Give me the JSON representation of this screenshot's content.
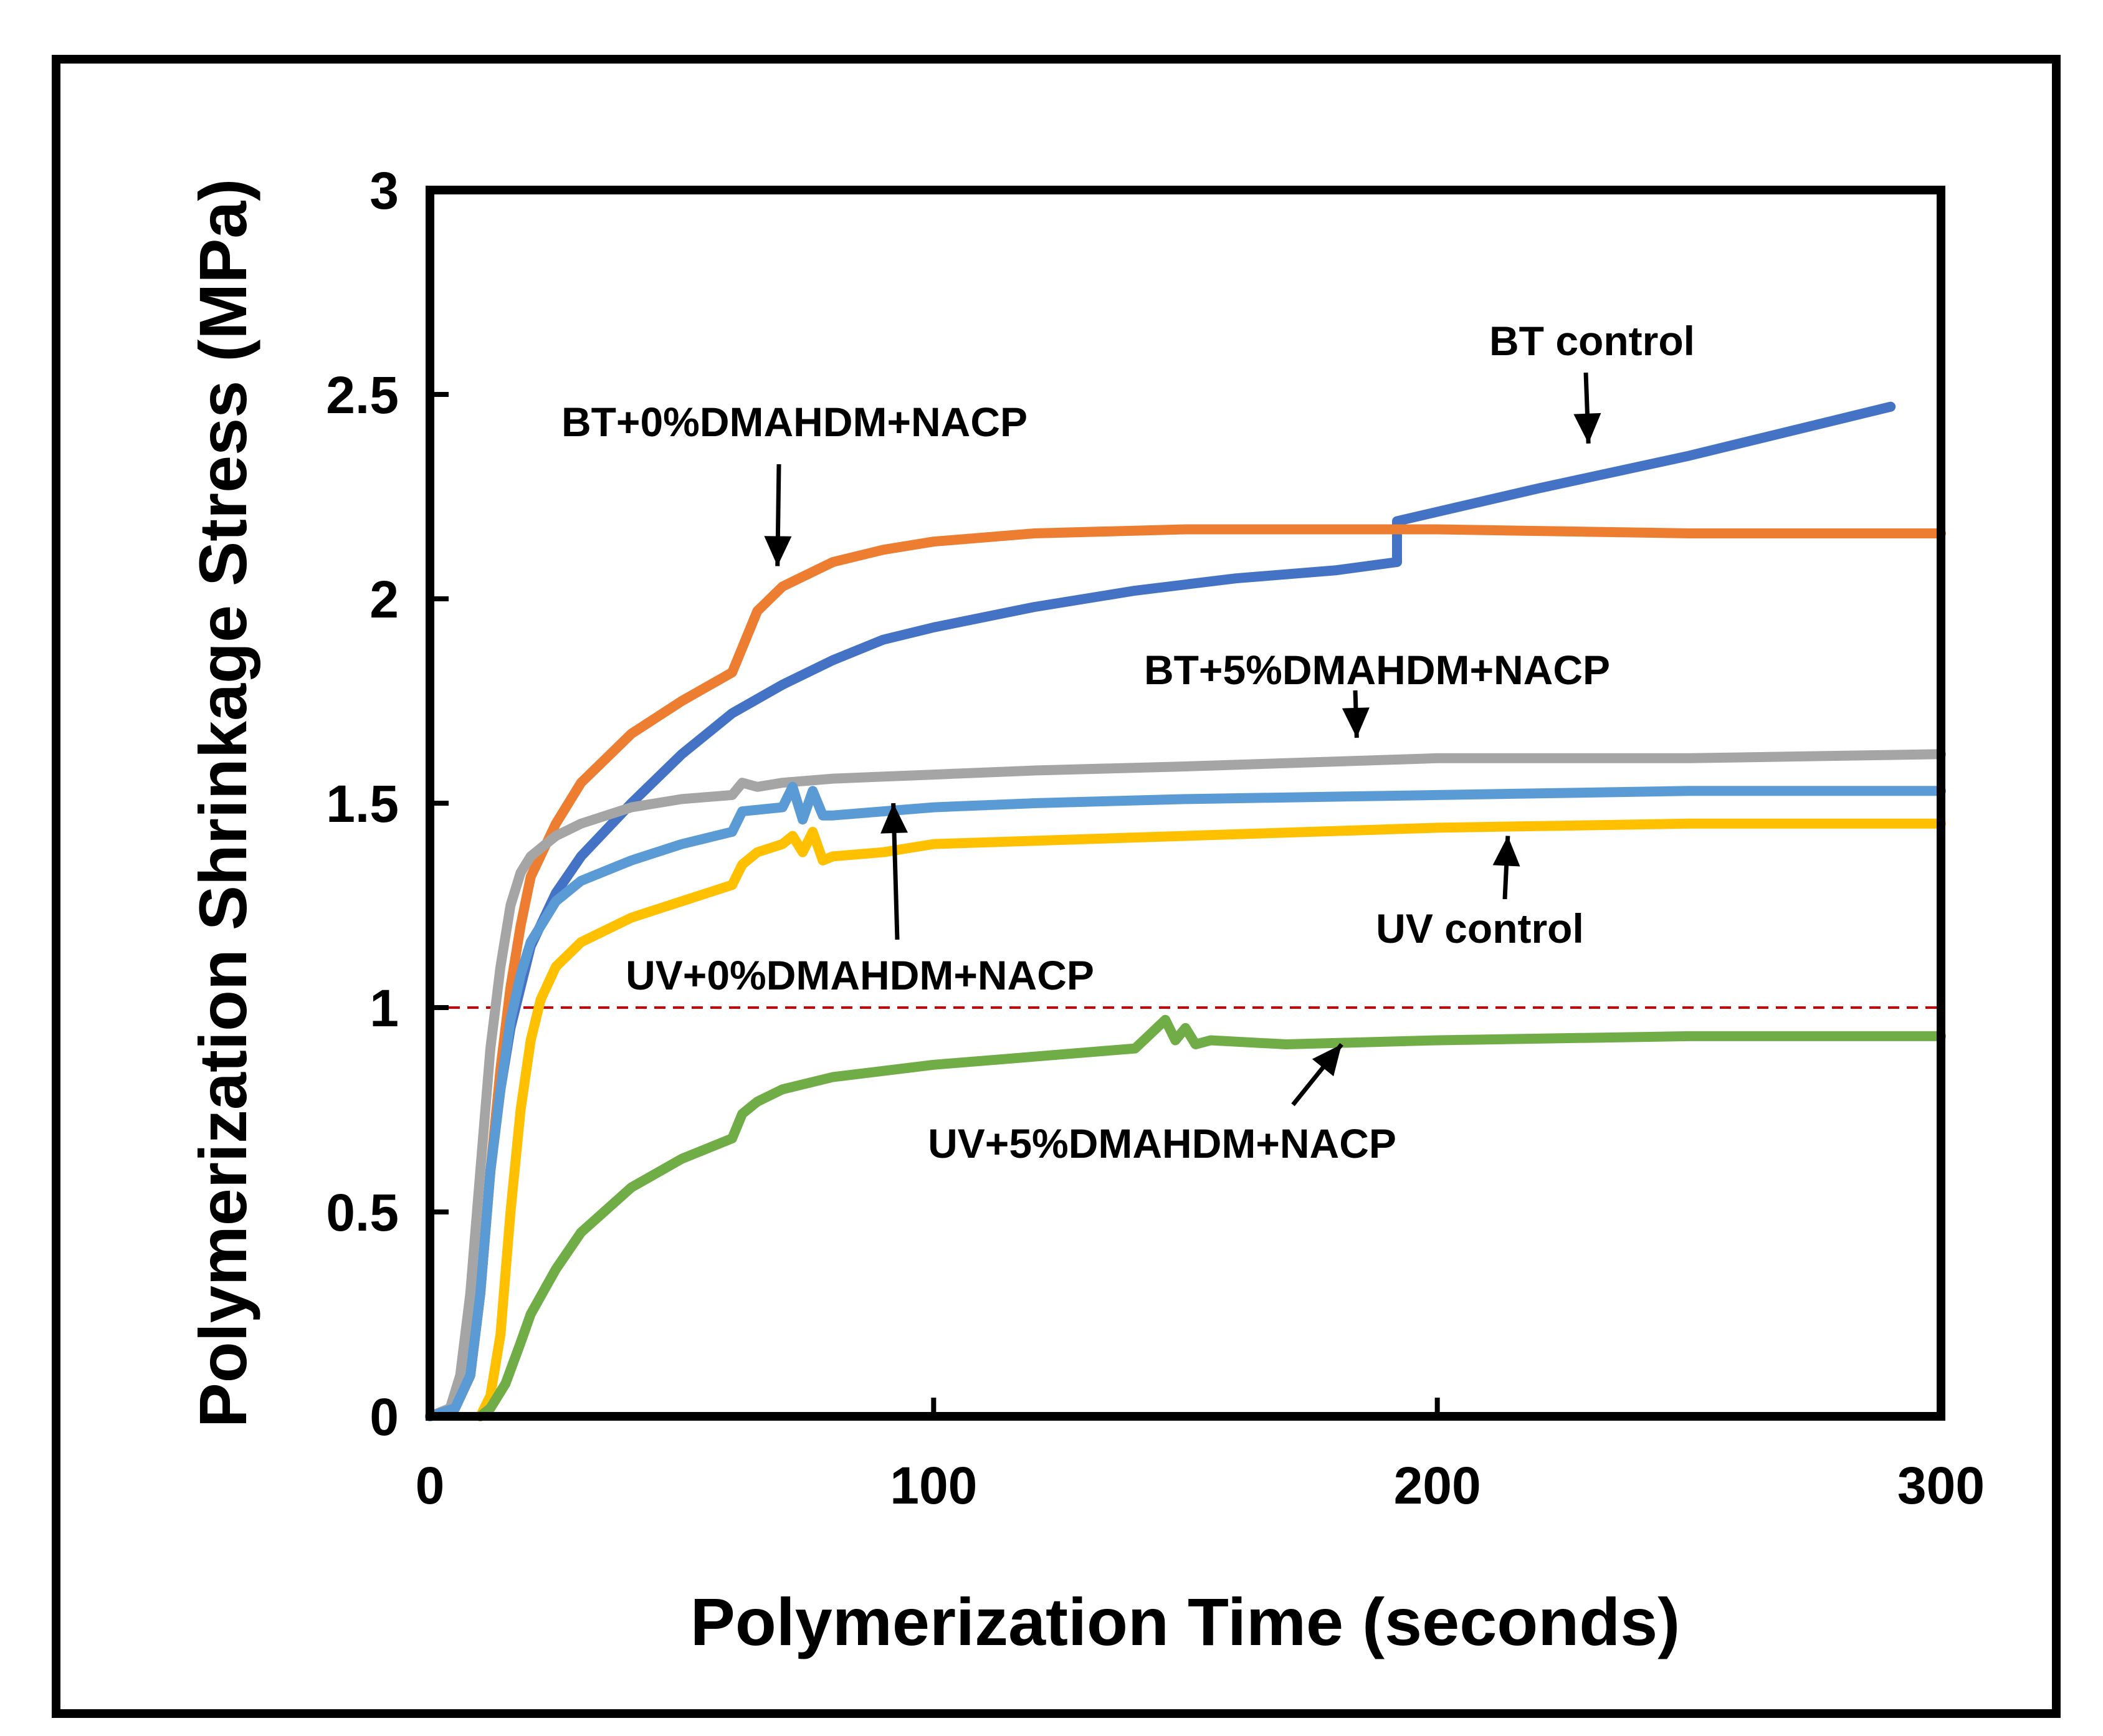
{
  "chart_data": {
    "type": "line",
    "xlabel": "Polymerization Time (seconds)",
    "ylabel": "Polymerization Shrinkage Stress (MPa)",
    "xlim": [
      0,
      300
    ],
    "ylim": [
      0,
      3
    ],
    "xticks": [
      "0",
      "100",
      "200",
      "300"
    ],
    "yticks": [
      "0",
      "0.5",
      "1",
      "1.5",
      "2",
      "2.5",
      "3"
    ],
    "grid": false,
    "legend": "none (curves labeled by annotations with arrows)",
    "reference_line": {
      "y": 1.0,
      "style": "dashed",
      "color": "#cc0000"
    },
    "series": [
      {
        "name": "BT control",
        "color": "#4472c4",
        "x": [
          0,
          5,
          8,
          10,
          12,
          14,
          16,
          18,
          20,
          25,
          30,
          40,
          50,
          60,
          70,
          80,
          90,
          100,
          120,
          140,
          160,
          180,
          192,
          192,
          220,
          250,
          290
        ],
        "y": [
          0,
          0.02,
          0.1,
          0.3,
          0.6,
          0.8,
          0.95,
          1.05,
          1.15,
          1.28,
          1.37,
          1.5,
          1.62,
          1.72,
          1.79,
          1.85,
          1.9,
          1.93,
          1.98,
          2.02,
          2.05,
          2.07,
          2.09,
          2.19,
          2.27,
          2.35,
          2.47
        ]
      },
      {
        "name": "BT+0%DMAHDM+NACP",
        "color": "#ed7d31",
        "x": [
          0,
          5,
          8,
          10,
          12,
          14,
          16,
          18,
          20,
          25,
          30,
          40,
          50,
          60,
          62,
          65,
          70,
          80,
          90,
          100,
          120,
          150,
          200,
          250,
          300
        ],
        "y": [
          0,
          0.02,
          0.1,
          0.3,
          0.6,
          0.85,
          1.05,
          1.2,
          1.32,
          1.45,
          1.55,
          1.67,
          1.75,
          1.82,
          1.88,
          1.97,
          2.03,
          2.09,
          2.12,
          2.14,
          2.16,
          2.17,
          2.17,
          2.16,
          2.16
        ]
      },
      {
        "name": "BT+5%DMAHDM+NACP",
        "color": "#a5a5a5",
        "x": [
          0,
          4,
          6,
          8,
          10,
          12,
          14,
          16,
          18,
          20,
          25,
          30,
          40,
          50,
          60,
          62,
          65,
          70,
          80,
          100,
          120,
          150,
          200,
          250,
          300
        ],
        "y": [
          0,
          0.02,
          0.1,
          0.3,
          0.6,
          0.9,
          1.1,
          1.25,
          1.33,
          1.37,
          1.42,
          1.45,
          1.49,
          1.51,
          1.52,
          1.55,
          1.54,
          1.55,
          1.56,
          1.57,
          1.58,
          1.59,
          1.61,
          1.61,
          1.62
        ]
      },
      {
        "name": "UV+0%DMAHDM+NACP",
        "color": "#5b9bd5",
        "x": [
          0,
          5,
          8,
          10,
          12,
          14,
          16,
          18,
          20,
          25,
          30,
          40,
          50,
          60,
          62,
          70,
          72,
          74,
          76,
          78,
          80,
          90,
          100,
          120,
          150,
          200,
          250,
          300
        ],
        "y": [
          0,
          0.02,
          0.1,
          0.3,
          0.6,
          0.8,
          0.97,
          1.08,
          1.16,
          1.26,
          1.31,
          1.36,
          1.4,
          1.43,
          1.48,
          1.49,
          1.54,
          1.46,
          1.53,
          1.47,
          1.47,
          1.48,
          1.49,
          1.5,
          1.51,
          1.52,
          1.53,
          1.53
        ]
      },
      {
        "name": "UV control",
        "color": "#ffc000",
        "x": [
          10,
          12,
          14,
          16,
          18,
          20,
          22,
          25,
          30,
          40,
          50,
          60,
          62,
          65,
          70,
          72,
          74,
          76,
          78,
          80,
          90,
          100,
          150,
          200,
          250,
          300
        ],
        "y": [
          0,
          0.05,
          0.2,
          0.5,
          0.75,
          0.92,
          1.02,
          1.1,
          1.16,
          1.22,
          1.26,
          1.3,
          1.35,
          1.38,
          1.4,
          1.42,
          1.38,
          1.43,
          1.36,
          1.37,
          1.38,
          1.4,
          1.42,
          1.44,
          1.45,
          1.45
        ]
      },
      {
        "name": "UV+5%DMAHDM+NACP",
        "color": "#70ad47",
        "x": [
          10,
          12,
          15,
          18,
          20,
          25,
          30,
          40,
          50,
          60,
          62,
          65,
          70,
          80,
          100,
          120,
          140,
          146,
          148,
          150,
          152,
          155,
          170,
          200,
          250,
          300
        ],
        "y": [
          0,
          0.02,
          0.08,
          0.18,
          0.25,
          0.36,
          0.45,
          0.56,
          0.63,
          0.68,
          0.74,
          0.77,
          0.8,
          0.83,
          0.86,
          0.88,
          0.9,
          0.97,
          0.92,
          0.95,
          0.91,
          0.92,
          0.91,
          0.92,
          0.93,
          0.93
        ]
      }
    ],
    "annotations": [
      {
        "text": "BT control",
        "color": "#000000",
        "arrow_to": [
          230,
          2.38
        ]
      },
      {
        "text": "BT+0%DMAHDM+NACP",
        "color": "#000000",
        "arrow_to": [
          69,
          2.08
        ]
      },
      {
        "text": "BT+5%DMAHDM+NACP",
        "color": "#000000",
        "arrow_to": [
          184,
          1.66
        ]
      },
      {
        "text": "UV+0%DMAHDM+NACP",
        "color": "#000000",
        "arrow_to": [
          92,
          1.5
        ]
      },
      {
        "text": "UV control",
        "color": "#000000",
        "arrow_to": [
          214,
          1.42
        ]
      },
      {
        "text": "UV+5%DMAHDM+NACP",
        "color": "#e31a1c",
        "arrow_to": [
          181,
          0.91
        ]
      }
    ]
  }
}
